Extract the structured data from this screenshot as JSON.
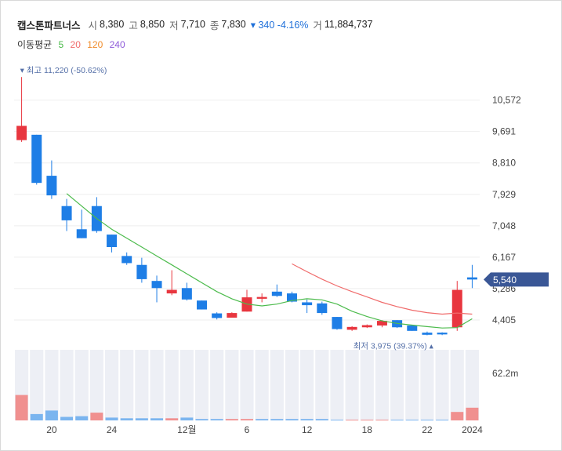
{
  "header": {
    "name": "캡스톤파트너스",
    "open_label": "시",
    "open": "8,380",
    "high_label": "고",
    "high": "8,850",
    "low_label": "저",
    "low": "7,710",
    "close_label": "종",
    "close": "7,830",
    "change": "▾ 340 -4.16%",
    "volume_label": "거",
    "volume": "11,884,737"
  },
  "ma_legend": {
    "label": "이동평균",
    "items": [
      {
        "text": "5",
        "color": "#4cbb4c"
      },
      {
        "text": "20",
        "color": "#f06b6b"
      },
      {
        "text": "120",
        "color": "#f08c2c"
      },
      {
        "text": "240",
        "color": "#8e5bd9"
      }
    ]
  },
  "chart_data": {
    "type": "candlestick",
    "y_ticks": [
      4405,
      5286,
      6167,
      7048,
      7929,
      8810,
      9691,
      10572
    ],
    "y_tick_labels": [
      "4,405",
      "5,286",
      "6,167",
      "7,048",
      "7,929",
      "8,810",
      "9,691",
      "10,572"
    ],
    "ylim": [
      3700,
      11400
    ],
    "x_labels": [
      {
        "index": 2,
        "text": "20"
      },
      {
        "index": 6,
        "text": "24"
      },
      {
        "index": 11,
        "text": "12월"
      },
      {
        "index": 15,
        "text": "6"
      },
      {
        "index": 19,
        "text": "12"
      },
      {
        "index": 23,
        "text": "18"
      },
      {
        "index": 27,
        "text": "22"
      },
      {
        "index": 30,
        "text": "2024"
      }
    ],
    "candles": [
      {
        "o": 9450,
        "h": 11220,
        "l": 9400,
        "c": 9850
      },
      {
        "o": 9600,
        "h": 9600,
        "l": 8200,
        "c": 8250
      },
      {
        "o": 8450,
        "h": 8880,
        "l": 7800,
        "c": 7900
      },
      {
        "o": 7600,
        "h": 7800,
        "l": 6900,
        "c": 7200
      },
      {
        "o": 6950,
        "h": 7500,
        "l": 6700,
        "c": 6700
      },
      {
        "o": 7600,
        "h": 7850,
        "l": 6850,
        "c": 6900
      },
      {
        "o": 6800,
        "h": 6800,
        "l": 6300,
        "c": 6450
      },
      {
        "o": 6200,
        "h": 6300,
        "l": 5950,
        "c": 6000
      },
      {
        "o": 5950,
        "h": 6150,
        "l": 5450,
        "c": 5550
      },
      {
        "o": 5500,
        "h": 5650,
        "l": 4900,
        "c": 5300
      },
      {
        "o": 5150,
        "h": 5800,
        "l": 5100,
        "c": 5250
      },
      {
        "o": 5300,
        "h": 5450,
        "l": 4950,
        "c": 4980
      },
      {
        "o": 4950,
        "h": 4950,
        "l": 4700,
        "c": 4700
      },
      {
        "o": 4590,
        "h": 4620,
        "l": 4420,
        "c": 4460
      },
      {
        "o": 4470,
        "h": 4620,
        "l": 4470,
        "c": 4600
      },
      {
        "o": 4640,
        "h": 5250,
        "l": 4640,
        "c": 5040
      },
      {
        "o": 5000,
        "h": 5150,
        "l": 4900,
        "c": 5050
      },
      {
        "o": 5200,
        "h": 5400,
        "l": 5050,
        "c": 5080
      },
      {
        "o": 5150,
        "h": 5200,
        "l": 4900,
        "c": 4920
      },
      {
        "o": 4900,
        "h": 4980,
        "l": 4600,
        "c": 4820
      },
      {
        "o": 4870,
        "h": 4920,
        "l": 4550,
        "c": 4600
      },
      {
        "o": 4490,
        "h": 4490,
        "l": 4130,
        "c": 4150
      },
      {
        "o": 4130,
        "h": 4230,
        "l": 4100,
        "c": 4210
      },
      {
        "o": 4200,
        "h": 4280,
        "l": 4180,
        "c": 4260
      },
      {
        "o": 4250,
        "h": 4400,
        "l": 4200,
        "c": 4380
      },
      {
        "o": 4400,
        "h": 4400,
        "l": 4180,
        "c": 4200
      },
      {
        "o": 4250,
        "h": 4260,
        "l": 4100,
        "c": 4100
      },
      {
        "o": 4050,
        "h": 4080,
        "l": 3975,
        "c": 3990
      },
      {
        "o": 4050,
        "h": 4060,
        "l": 3980,
        "c": 4000
      },
      {
        "o": 4200,
        "h": 5500,
        "l": 4100,
        "c": 5250
      },
      {
        "o": 5600,
        "h": 5950,
        "l": 5300,
        "c": 5540
      }
    ],
    "ma5": [
      [
        3,
        7950
      ],
      [
        4,
        7600
      ],
      [
        5,
        7250
      ],
      [
        6,
        6950
      ],
      [
        7,
        6700
      ],
      [
        8,
        6450
      ],
      [
        9,
        6200
      ],
      [
        10,
        5950
      ],
      [
        11,
        5700
      ],
      [
        12,
        5450
      ],
      [
        13,
        5200
      ],
      [
        14,
        5000
      ],
      [
        15,
        4850
      ],
      [
        16,
        4800
      ],
      [
        17,
        4850
      ],
      [
        18,
        4950
      ],
      [
        19,
        5000
      ],
      [
        20,
        4970
      ],
      [
        21,
        4850
      ],
      [
        22,
        4650
      ],
      [
        23,
        4500
      ],
      [
        24,
        4380
      ],
      [
        25,
        4310
      ],
      [
        26,
        4260
      ],
      [
        27,
        4220
      ],
      [
        28,
        4180
      ],
      [
        29,
        4190
      ],
      [
        30,
        4440
      ]
    ],
    "ma20": [
      [
        18,
        5980
      ],
      [
        19,
        5760
      ],
      [
        20,
        5550
      ],
      [
        21,
        5360
      ],
      [
        22,
        5200
      ],
      [
        23,
        5050
      ],
      [
        24,
        4900
      ],
      [
        25,
        4780
      ],
      [
        26,
        4680
      ],
      [
        27,
        4610
      ],
      [
        28,
        4570
      ],
      [
        29,
        4600
      ],
      [
        30,
        4570
      ]
    ],
    "annotations": {
      "high": "▾ 최고 11,220 (-50.62%)",
      "low": "최저 3,975 (39.37%) ▴"
    },
    "current_price_label": "5,540",
    "volume_axis_label": "62.2m",
    "volumes": [
      {
        "v": 0.36,
        "up": true
      },
      {
        "v": 0.09,
        "up": false
      },
      {
        "v": 0.14,
        "up": false
      },
      {
        "v": 0.05,
        "up": false
      },
      {
        "v": 0.06,
        "up": false
      },
      {
        "v": 0.11,
        "up": true
      },
      {
        "v": 0.04,
        "up": false
      },
      {
        "v": 0.03,
        "up": false
      },
      {
        "v": 0.03,
        "up": false
      },
      {
        "v": 0.03,
        "up": false
      },
      {
        "v": 0.03,
        "up": true
      },
      {
        "v": 0.04,
        "up": false
      },
      {
        "v": 0.02,
        "up": false
      },
      {
        "v": 0.02,
        "up": false
      },
      {
        "v": 0.02,
        "up": true
      },
      {
        "v": 0.02,
        "up": true
      },
      {
        "v": 0.02,
        "up": false
      },
      {
        "v": 0.02,
        "up": false
      },
      {
        "v": 0.02,
        "up": false
      },
      {
        "v": 0.02,
        "up": false
      },
      {
        "v": 0.02,
        "up": false
      },
      {
        "v": 0.01,
        "up": false
      },
      {
        "v": 0.01,
        "up": true
      },
      {
        "v": 0.01,
        "up": true
      },
      {
        "v": 0.01,
        "up": true
      },
      {
        "v": 0.01,
        "up": false
      },
      {
        "v": 0.01,
        "up": false
      },
      {
        "v": 0.01,
        "up": false
      },
      {
        "v": 0.01,
        "up": false
      },
      {
        "v": 0.12,
        "up": true
      },
      {
        "v": 0.18,
        "up": true
      }
    ],
    "colors": {
      "up": "#e8363f",
      "down": "#1e7ee6",
      "up_volume": "#f0908f",
      "down_volume": "#7bb5ef",
      "ma5": "#4cbb4c",
      "ma20": "#f06b6b",
      "price_tag": "#3a5796",
      "annotation": "#5570a8",
      "grid": "#eeeeee",
      "column_band": "#edeff5"
    }
  }
}
